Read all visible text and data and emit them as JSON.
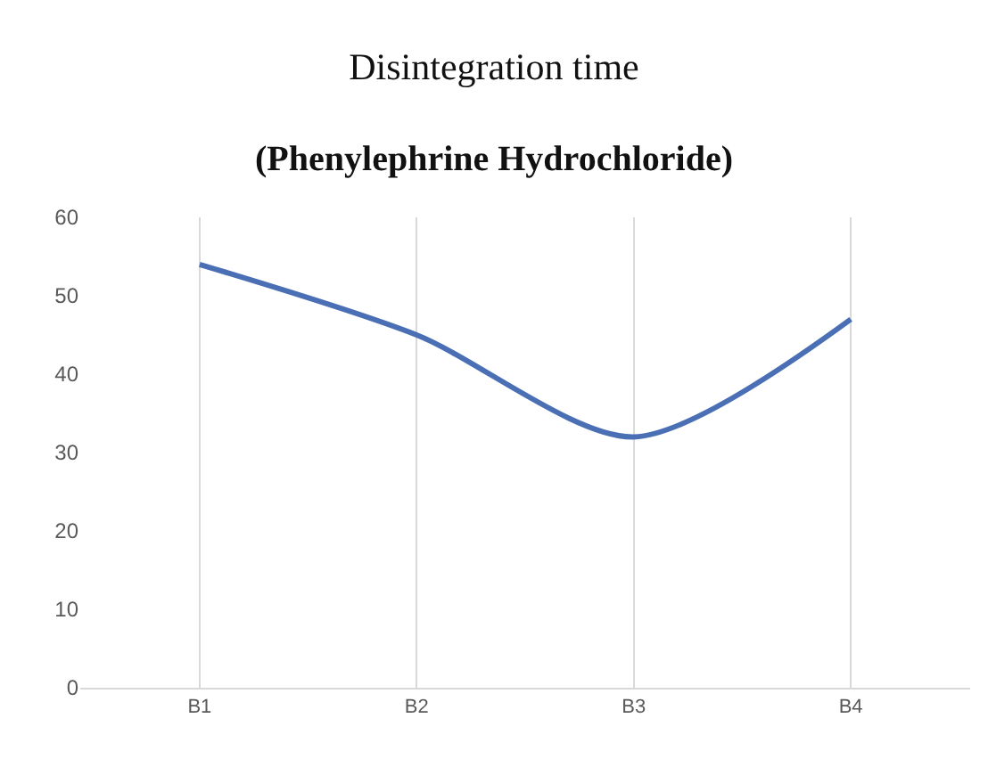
{
  "chart_data": {
    "type": "line",
    "title": "Disintegration time",
    "subtitle": "(Phenylephrine Hydrochloride)",
    "categories": [
      "B1",
      "B2",
      "B3",
      "B4"
    ],
    "series": [
      {
        "color": "#4a6fb5",
        "values": [
          54,
          45,
          32,
          47
        ]
      }
    ],
    "ylim": [
      0,
      60
    ],
    "yticks": [
      0,
      10,
      20,
      30,
      40,
      50,
      60
    ],
    "grid": "x",
    "marker": "none",
    "line_style": "solid"
  }
}
